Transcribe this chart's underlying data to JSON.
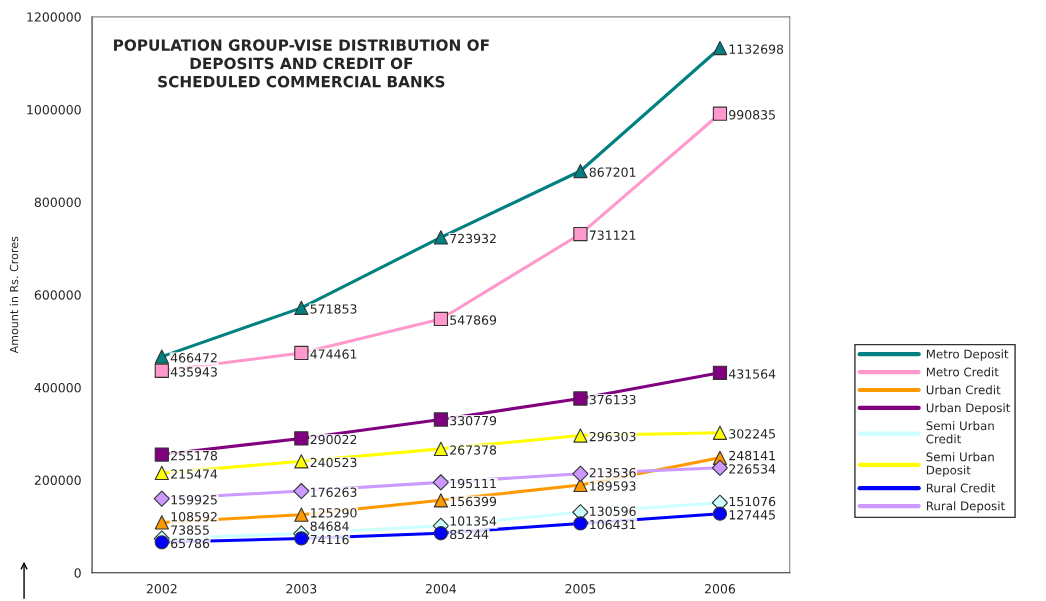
{
  "chart_data": {
    "type": "line",
    "title": "POPULATION GROUP-VISE DISTRIBUTION OF\nDEPOSITS AND CREDIT OF\nSCHEDULED COMMERCIAL BANKS",
    "ylabel": "Amount in Rs. Crores",
    "categories": [
      "2002",
      "2003",
      "2004",
      "2005",
      "2006"
    ],
    "series": [
      {
        "name": "Metro Deposit",
        "color": "#008080",
        "marker": "triangle",
        "values": [
          466472,
          571853,
          723932,
          867201,
          1132698
        ]
      },
      {
        "name": "Metro Credit",
        "color": "#ff99cc",
        "marker": "square",
        "values": [
          435943,
          474461,
          547869,
          731121,
          990835
        ]
      },
      {
        "name": "Urban Credit",
        "color": "#ff9900",
        "marker": "triangle",
        "values": [
          108592,
          125290,
          156399,
          189593,
          248141
        ]
      },
      {
        "name": "Urban Deposit",
        "color": "#800080",
        "marker": "square",
        "values": [
          255178,
          290022,
          330779,
          376133,
          431564
        ]
      },
      {
        "name": "Semi Urban\nCredit",
        "color": "#ccffff",
        "marker": "diamond",
        "values": [
          73855,
          84684,
          101354,
          130596,
          151076
        ]
      },
      {
        "name": "Semi Urban\nDeposit",
        "color": "#ffff00",
        "marker": "triangle",
        "values": [
          215474,
          240523,
          267378,
          296303,
          302245
        ]
      },
      {
        "name": "Rural Credit",
        "color": "#0000ff",
        "marker": "circle",
        "values": [
          65786,
          74116,
          85244,
          106431,
          127445
        ]
      },
      {
        "name": "Rural Deposit",
        "color": "#cc99ff",
        "marker": "diamond",
        "values": [
          159925,
          176263,
          195111,
          213536,
          226534
        ]
      }
    ],
    "ylim": [
      0,
      1200000
    ],
    "yticks": [
      0,
      200000,
      400000,
      600000,
      800000,
      1000000,
      1200000
    ],
    "data_labels": true,
    "grid": false,
    "legend": "right"
  }
}
